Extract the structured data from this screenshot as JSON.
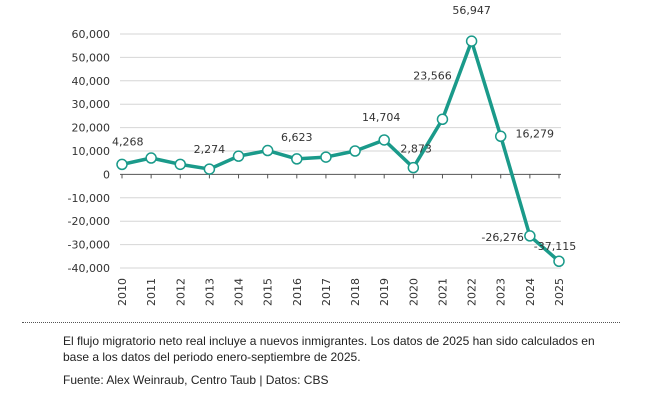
{
  "chart_data": {
    "type": "line",
    "categories": [
      "2010",
      "2011",
      "2012",
      "2013",
      "2014",
      "2015",
      "2016",
      "2017",
      "2018",
      "2019",
      "2020",
      "2021",
      "2022",
      "2023",
      "2024",
      "2025"
    ],
    "values": [
      4268,
      7000,
      4300,
      2274,
      7800,
      10200,
      6623,
      7400,
      10000,
      14704,
      2873,
      23566,
      56947,
      16279,
      -26276,
      -37115
    ],
    "data_labels": [
      "4,268",
      null,
      null,
      "2,274",
      null,
      null,
      "6,623",
      null,
      null,
      "14,704",
      "2,873",
      "23,566",
      "56,947",
      "16,279",
      "-26,276",
      "-37,115"
    ],
    "yticks": [
      60000,
      50000,
      40000,
      30000,
      20000,
      10000,
      0,
      -10000,
      -20000,
      -30000,
      -40000
    ],
    "ytick_labels": [
      "60,000",
      "50,000",
      "40,000",
      "30,000",
      "20,000",
      "10,000",
      "0",
      "-10,000",
      "-20,000",
      "-30,000",
      "-40,000"
    ],
    "ylim": [
      -40000,
      60000
    ],
    "grid": true,
    "line_color": "#1a9a8a",
    "marker": "open-circle"
  },
  "footer": {
    "note": "El flujo migratorio neto real incluye a nuevos inmigrantes. Los datos de 2025 han sido calculados en base a los datos del periodo enero-septiembre de 2025.",
    "source": "Fuente: Alex Weinraub, Centro Taub | Datos: CBS"
  }
}
